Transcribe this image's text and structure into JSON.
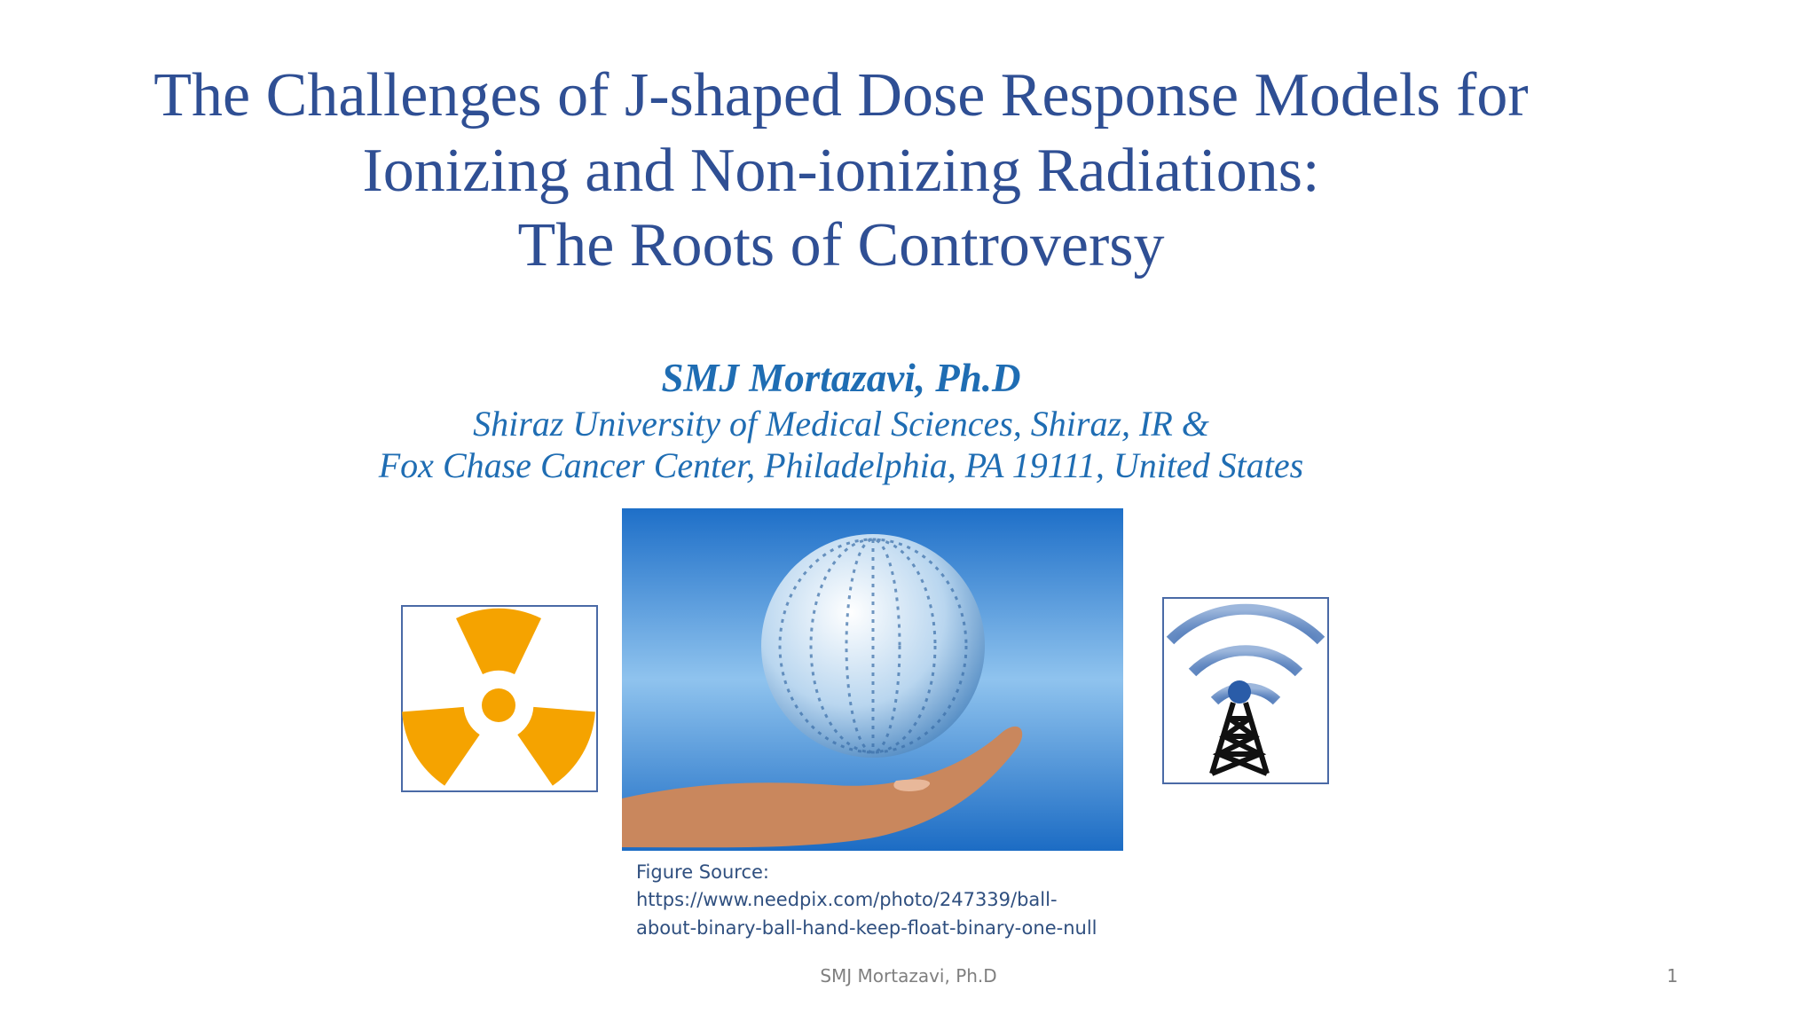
{
  "slide": {
    "title_lines": [
      "The Challenges of J-shaped Dose Response Models for",
      "Ionizing and Non-ionizing Radiations:",
      "The Roots of Controversy"
    ],
    "author": "SMJ Mortazavi, Ph.D",
    "affiliations": [
      "Shiraz University of Medical Sciences, Shiraz, IR &",
      "Fox Chase Cancer Center, Philadelphia, PA 19111, United States"
    ],
    "figure_source": [
      "Figure Source:",
      "https://www.needpix.com/photo/247339/ball-",
      "about-binary-ball-hand-keep-float-binary-one-null"
    ],
    "footer": "SMJ Mortazavi, Ph.D",
    "page_number": "1"
  }
}
